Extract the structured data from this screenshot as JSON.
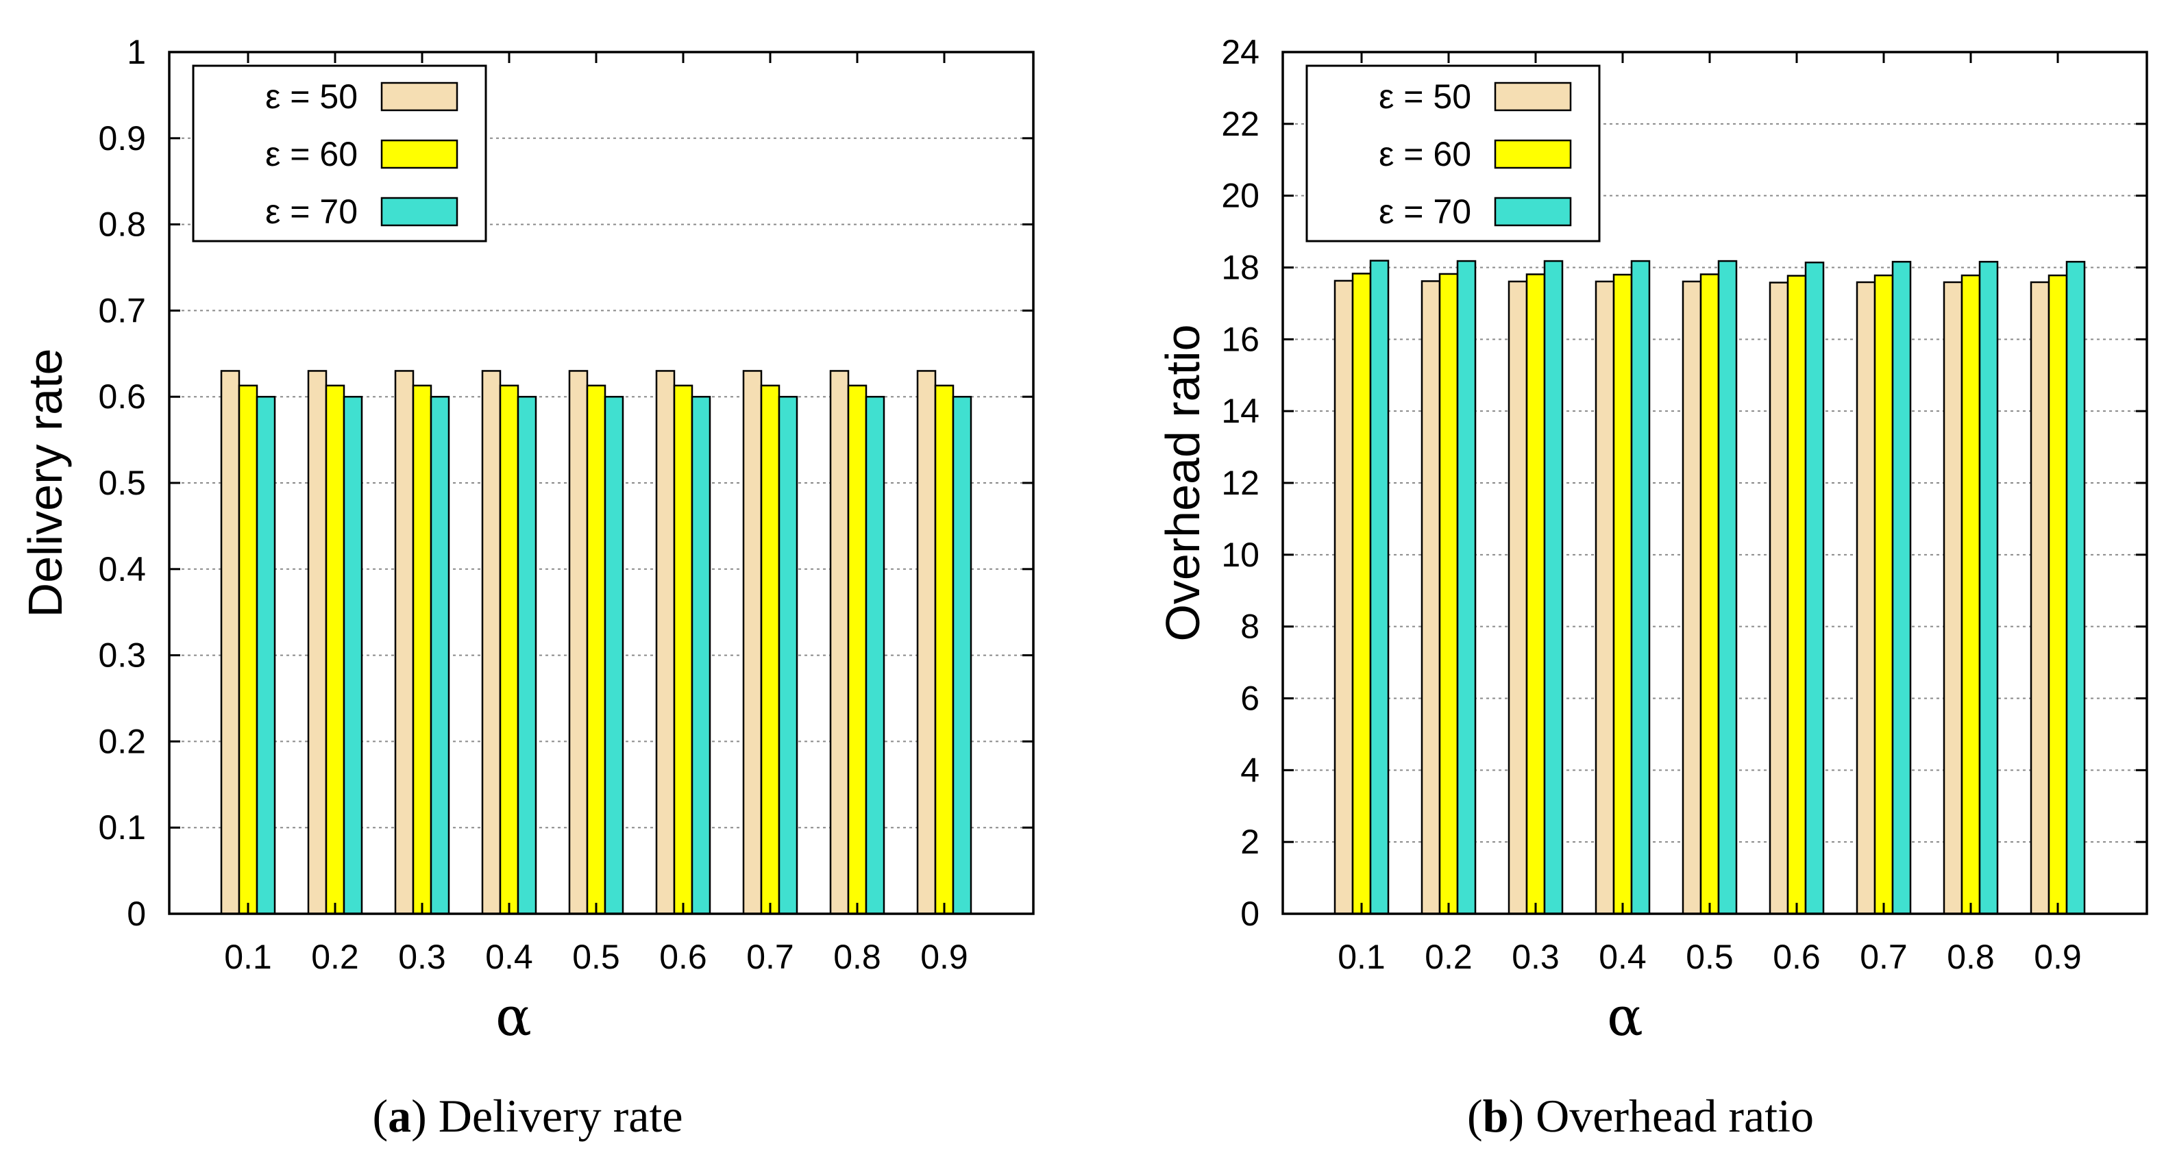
{
  "chart_data": [
    {
      "type": "bar",
      "panel_id": "a",
      "caption_letter": "a",
      "caption_text": "Delivery rate",
      "xlabel": "α",
      "ylabel": "Delivery rate",
      "categories": [
        "0.1",
        "0.2",
        "0.3",
        "0.4",
        "0.5",
        "0.6",
        "0.7",
        "0.8",
        "0.9"
      ],
      "ylim": [
        0,
        1
      ],
      "yticks": [
        "0",
        "0.1",
        "0.2",
        "0.3",
        "0.4",
        "0.5",
        "0.6",
        "0.7",
        "0.8",
        "0.9",
        "1"
      ],
      "grid": true,
      "legend_position": "top-left",
      "series": [
        {
          "name": "ε = 50",
          "color": "#f5deb3",
          "values": [
            0.63,
            0.63,
            0.63,
            0.63,
            0.63,
            0.63,
            0.63,
            0.63,
            0.63
          ]
        },
        {
          "name": "ε = 60",
          "color": "#ffff00",
          "values": [
            0.613,
            0.613,
            0.613,
            0.613,
            0.613,
            0.613,
            0.613,
            0.613,
            0.613
          ]
        },
        {
          "name": "ε = 70",
          "color": "#40e0d0",
          "values": [
            0.6,
            0.6,
            0.6,
            0.6,
            0.6,
            0.6,
            0.6,
            0.6,
            0.6
          ]
        }
      ]
    },
    {
      "type": "bar",
      "panel_id": "b",
      "caption_letter": "b",
      "caption_text": "Overhead ratio",
      "xlabel": "α",
      "ylabel": "Overhead ratio",
      "categories": [
        "0.1",
        "0.2",
        "0.3",
        "0.4",
        "0.5",
        "0.6",
        "0.7",
        "0.8",
        "0.9"
      ],
      "ylim": [
        0,
        24
      ],
      "yticks": [
        "0",
        "2",
        "4",
        "6",
        "8",
        "10",
        "12",
        "14",
        "16",
        "18",
        "20",
        "22",
        "24"
      ],
      "grid": true,
      "legend_position": "top-left",
      "series": [
        {
          "name": "ε = 50",
          "color": "#f5deb3",
          "values": [
            17.63,
            17.62,
            17.61,
            17.61,
            17.61,
            17.58,
            17.59,
            17.59,
            17.59
          ]
        },
        {
          "name": "ε = 60",
          "color": "#ffff00",
          "values": [
            17.83,
            17.82,
            17.81,
            17.8,
            17.81,
            17.77,
            17.78,
            17.78,
            17.78
          ]
        },
        {
          "name": "ε = 70",
          "color": "#40e0d0",
          "values": [
            18.19,
            18.18,
            18.18,
            18.18,
            18.18,
            18.14,
            18.16,
            18.16,
            18.16
          ]
        }
      ]
    }
  ]
}
